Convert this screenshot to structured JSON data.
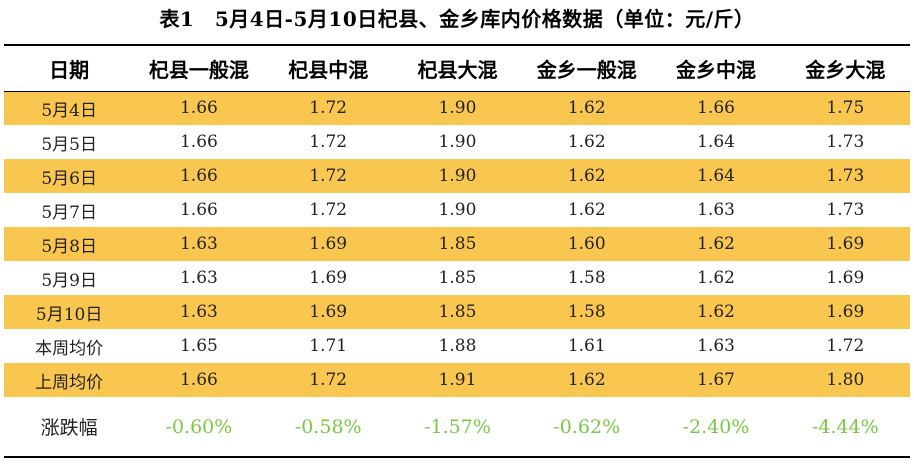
{
  "title": "表1　5月4日-5月10日杞县、金乡库内价格数据（单位：元/斤）",
  "table": {
    "headers": [
      "日期",
      "杞县一般混",
      "杞县中混",
      "杞县大混",
      "金乡一般混",
      "金乡中混",
      "金乡大混"
    ],
    "rows": [
      {
        "label": "5月4日",
        "values": [
          "1.66",
          "1.72",
          "1.90",
          "1.62",
          "1.66",
          "1.75"
        ],
        "highlight": true
      },
      {
        "label": "5月5日",
        "values": [
          "1.66",
          "1.72",
          "1.90",
          "1.62",
          "1.64",
          "1.73"
        ],
        "highlight": false
      },
      {
        "label": "5月6日",
        "values": [
          "1.66",
          "1.72",
          "1.90",
          "1.62",
          "1.64",
          "1.73"
        ],
        "highlight": true
      },
      {
        "label": "5月7日",
        "values": [
          "1.66",
          "1.72",
          "1.90",
          "1.62",
          "1.63",
          "1.73"
        ],
        "highlight": false
      },
      {
        "label": "5月8日",
        "values": [
          "1.63",
          "1.69",
          "1.85",
          "1.60",
          "1.62",
          "1.69"
        ],
        "highlight": true
      },
      {
        "label": "5月9日",
        "values": [
          "1.63",
          "1.69",
          "1.85",
          "1.58",
          "1.62",
          "1.69"
        ],
        "highlight": false
      },
      {
        "label": "5月10日",
        "values": [
          "1.63",
          "1.69",
          "1.85",
          "1.58",
          "1.62",
          "1.69"
        ],
        "highlight": true
      },
      {
        "label": "本周均价",
        "values": [
          "1.65",
          "1.71",
          "1.88",
          "1.61",
          "1.63",
          "1.72"
        ],
        "highlight": false
      },
      {
        "label": "上周均价",
        "values": [
          "1.66",
          "1.72",
          "1.91",
          "1.62",
          "1.67",
          "1.80"
        ],
        "highlight": true
      }
    ],
    "change": {
      "label": "涨跌幅",
      "values": [
        "-0.60%",
        "-0.58%",
        "-1.57%",
        "-0.62%",
        "-2.40%",
        "-4.44%"
      ]
    },
    "colors": {
      "highlight_row": "#f9c74f",
      "change_text": "#7ac943",
      "text": "#222222"
    }
  }
}
